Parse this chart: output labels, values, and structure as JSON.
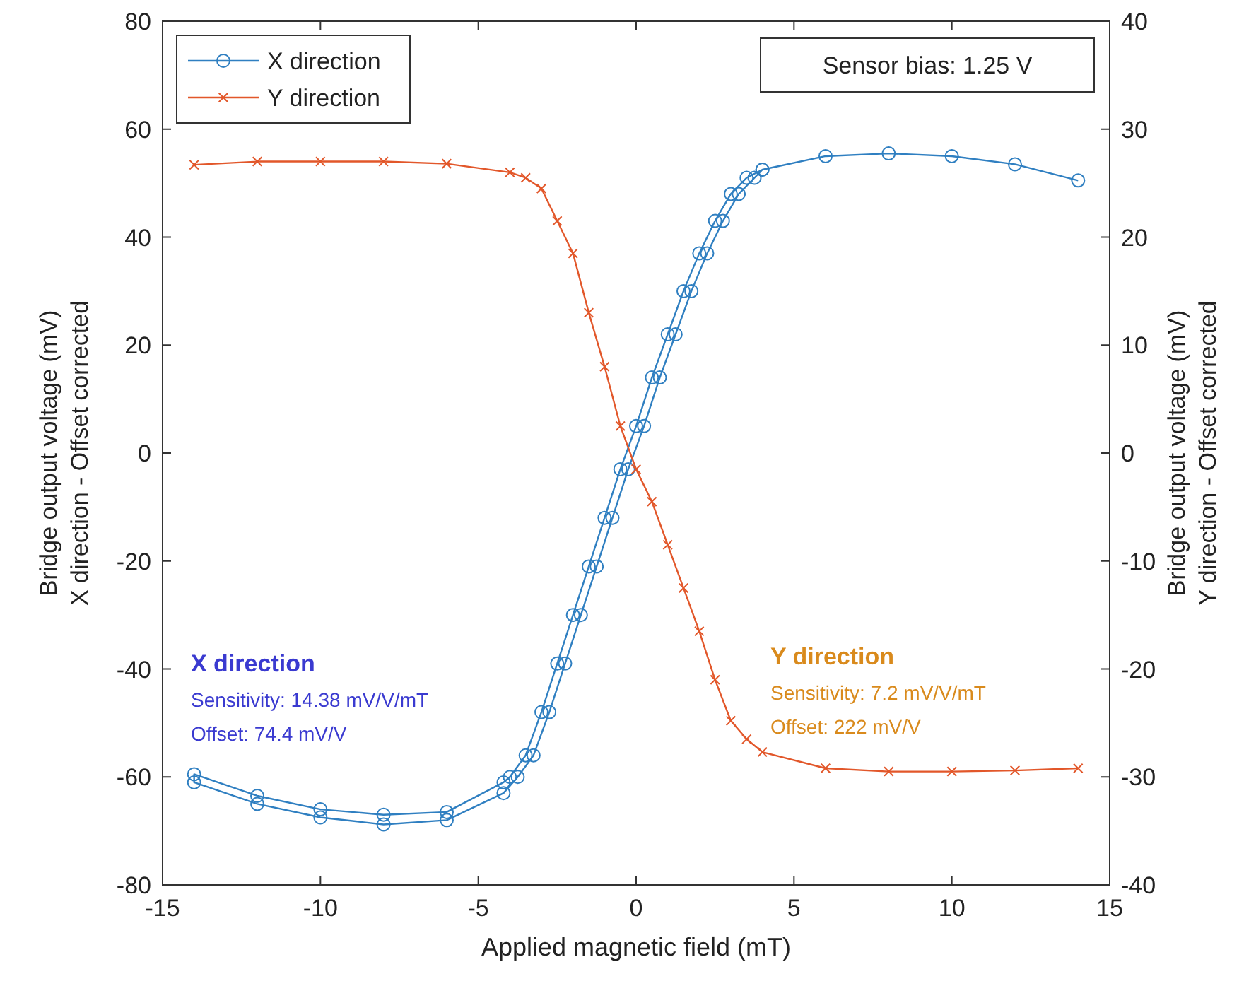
{
  "chart_data": {
    "type": "line",
    "xlabel": "Applied magnetic field (mT)",
    "ylabel": "Bridge output voltage (mV)\nX direction - Offset corrected",
    "y2label": "Bridge output voltage (mV)\nY direction - Offset corrected",
    "xlim": [
      -15,
      15
    ],
    "xticks": [
      -15,
      -10,
      -5,
      0,
      5,
      10,
      15
    ],
    "ylim": [
      -80,
      80
    ],
    "yticks": [
      -80,
      -60,
      -40,
      -20,
      0,
      20,
      40,
      60,
      80
    ],
    "y2lim": [
      -40,
      40
    ],
    "y2ticks": [
      -40,
      -30,
      -20,
      -10,
      0,
      10,
      20,
      30,
      40
    ],
    "grid": false,
    "legend": "top left",
    "series": [
      {
        "name": "X direction",
        "color": "#2f7fc1",
        "marker": "circle",
        "x": [
          14,
          12,
          10,
          8,
          6,
          4,
          3.5,
          3,
          2.5,
          2,
          1.5,
          1,
          0.5,
          0,
          -0.5,
          -1,
          -1.5,
          -2,
          -2.5,
          -3,
          -3.5,
          -4,
          -4.2,
          -6,
          -8,
          -10,
          -12,
          -14,
          -14,
          -12,
          -10,
          -8,
          -6,
          -4.2,
          -3.75,
          -3.25,
          -2.75,
          -2.25,
          -1.75,
          -1.25,
          -0.75,
          -0.25,
          0.25,
          0.75,
          1.25,
          1.75,
          2.25,
          2.75,
          3.25,
          3.75,
          4
        ],
        "values": [
          50.5,
          53.5,
          55,
          55.5,
          55,
          52.5,
          51,
          48,
          43,
          37,
          30,
          22,
          14,
          5,
          -3,
          -12,
          -21,
          -30,
          -39,
          -48,
          -56,
          -60,
          -61,
          -66.5,
          -67,
          -66,
          -63.5,
          -59.5,
          -61,
          -65,
          -67.5,
          -68.8,
          -68,
          -63,
          -60,
          -56,
          -48,
          -39,
          -30,
          -21,
          -12,
          -3,
          5,
          14,
          22,
          30,
          37,
          43,
          48,
          51,
          52.5
        ]
      },
      {
        "name": "Y direction",
        "color": "#e2572a",
        "marker": "cross",
        "axis": "y2",
        "x": [
          -14,
          -12,
          -10,
          -8,
          -6,
          -4,
          -3.5,
          -3,
          -2.5,
          -2,
          -1.5,
          -1,
          -0.5,
          0,
          0.5,
          1,
          1.5,
          2,
          2.5,
          3,
          3.5,
          4,
          6,
          8,
          10,
          12,
          14
        ],
        "values": [
          26.7,
          27,
          27,
          27,
          26.8,
          26,
          25.5,
          24.5,
          21.5,
          18.5,
          13,
          8,
          2.5,
          -1.5,
          -4.5,
          -8.5,
          -12.5,
          -16.5,
          -21,
          -24.8,
          -26.5,
          -27.7,
          -29.2,
          -29.5,
          -29.5,
          -29.4,
          -29.2
        ]
      }
    ],
    "annotations": [
      "X direction",
      "Sensitivity: 14.38 mV/V/mT",
      "Offset: 74.4 mV/V",
      "Y direction",
      "Sensitivity: 7.2 mV/V/mT",
      "Offset: 222 mV/V",
      "Sensor bias: 1.25 V"
    ]
  }
}
